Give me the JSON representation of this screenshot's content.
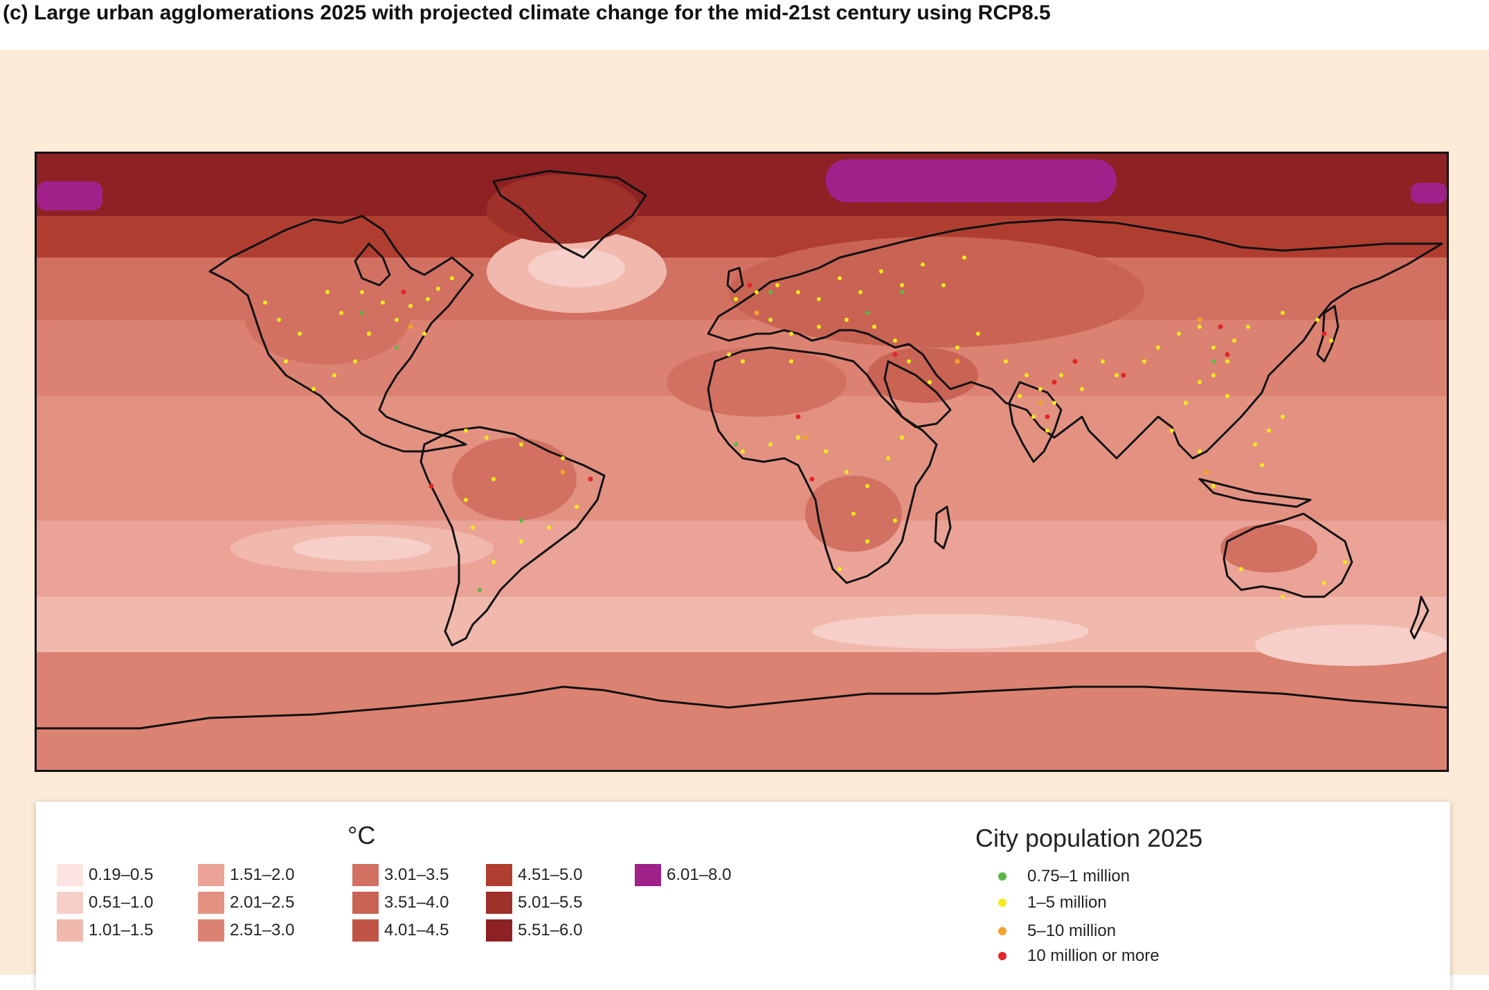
{
  "title": "(c) Large urban agglomerations 2025 with projected climate change for the mid-21st century using RCP8.5",
  "legend": {
    "unit": "°C",
    "bins": [
      {
        "label": "0.19–0.5",
        "color": "#fbe3e2"
      },
      {
        "label": "0.51–1.0",
        "color": "#f7cfc9"
      },
      {
        "label": "1.01–1.5",
        "color": "#f1b8ae"
      },
      {
        "label": "1.51–2.0",
        "color": "#eaa396"
      },
      {
        "label": "2.01–2.5",
        "color": "#e39282"
      },
      {
        "label": "2.51–3.0",
        "color": "#dc8272"
      },
      {
        "label": "3.01–3.5",
        "color": "#d27162"
      },
      {
        "label": "3.51–4.0",
        "color": "#c96354"
      },
      {
        "label": "4.01–4.5",
        "color": "#bf5444"
      },
      {
        "label": "4.51–5.0",
        "color": "#b03e30"
      },
      {
        "label": "5.01–5.5",
        "color": "#a0302a"
      },
      {
        "label": "5.51–6.0",
        "color": "#8e2123"
      },
      {
        "label": "6.01–8.0",
        "color": "#a1218b"
      }
    ]
  },
  "population_legend": {
    "title": "City population 2025",
    "classes": [
      {
        "label": "0.75–1 million",
        "color": "#5db845"
      },
      {
        "label": "1–5 million",
        "color": "#f6ea1c"
      },
      {
        "label": "5–10 million",
        "color": "#f3a22b"
      },
      {
        "label": "10 million or more",
        "color": "#e0262b"
      }
    ]
  }
}
